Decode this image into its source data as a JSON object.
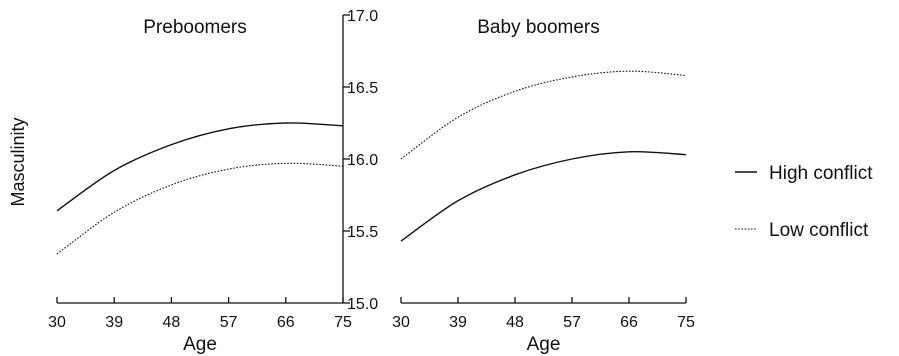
{
  "chart_data": {
    "type": "line",
    "ylabel": "Masculinity",
    "ylim": [
      15.0,
      17.0
    ],
    "yticks": [
      "15.0",
      "15.5",
      "16.0",
      "16.5",
      "17.0"
    ],
    "xlim": [
      30,
      75
    ],
    "xticks": [
      "30",
      "39",
      "48",
      "57",
      "66",
      "75"
    ],
    "legend_position": "right",
    "legend": [
      {
        "name": "High conflict",
        "style": "solid"
      },
      {
        "name": "Low conflict",
        "style": "dotted"
      }
    ],
    "panels": [
      {
        "title": "Preboomers",
        "xlabel": "Age",
        "series": [
          {
            "name": "High conflict",
            "style": "solid",
            "x": [
              30,
              39,
              48,
              57,
              66,
              75
            ],
            "y": [
              15.64,
              15.92,
              16.1,
              16.21,
              16.25,
              16.23
            ]
          },
          {
            "name": "Low conflict",
            "style": "dotted",
            "x": [
              30,
              39,
              48,
              57,
              66,
              75
            ],
            "y": [
              15.34,
              15.63,
              15.82,
              15.93,
              15.97,
              15.95
            ]
          }
        ]
      },
      {
        "title": "Baby boomers",
        "xlabel": "Age",
        "series": [
          {
            "name": "High conflict",
            "style": "solid",
            "x": [
              30,
              39,
              48,
              57,
              66,
              75
            ],
            "y": [
              15.43,
              15.71,
              15.89,
              16.0,
              16.05,
              16.03
            ]
          },
          {
            "name": "Low conflict",
            "style": "dotted",
            "x": [
              30,
              39,
              48,
              57,
              66,
              75
            ],
            "y": [
              16.0,
              16.29,
              16.47,
              16.57,
              16.61,
              16.58
            ]
          }
        ]
      }
    ]
  }
}
